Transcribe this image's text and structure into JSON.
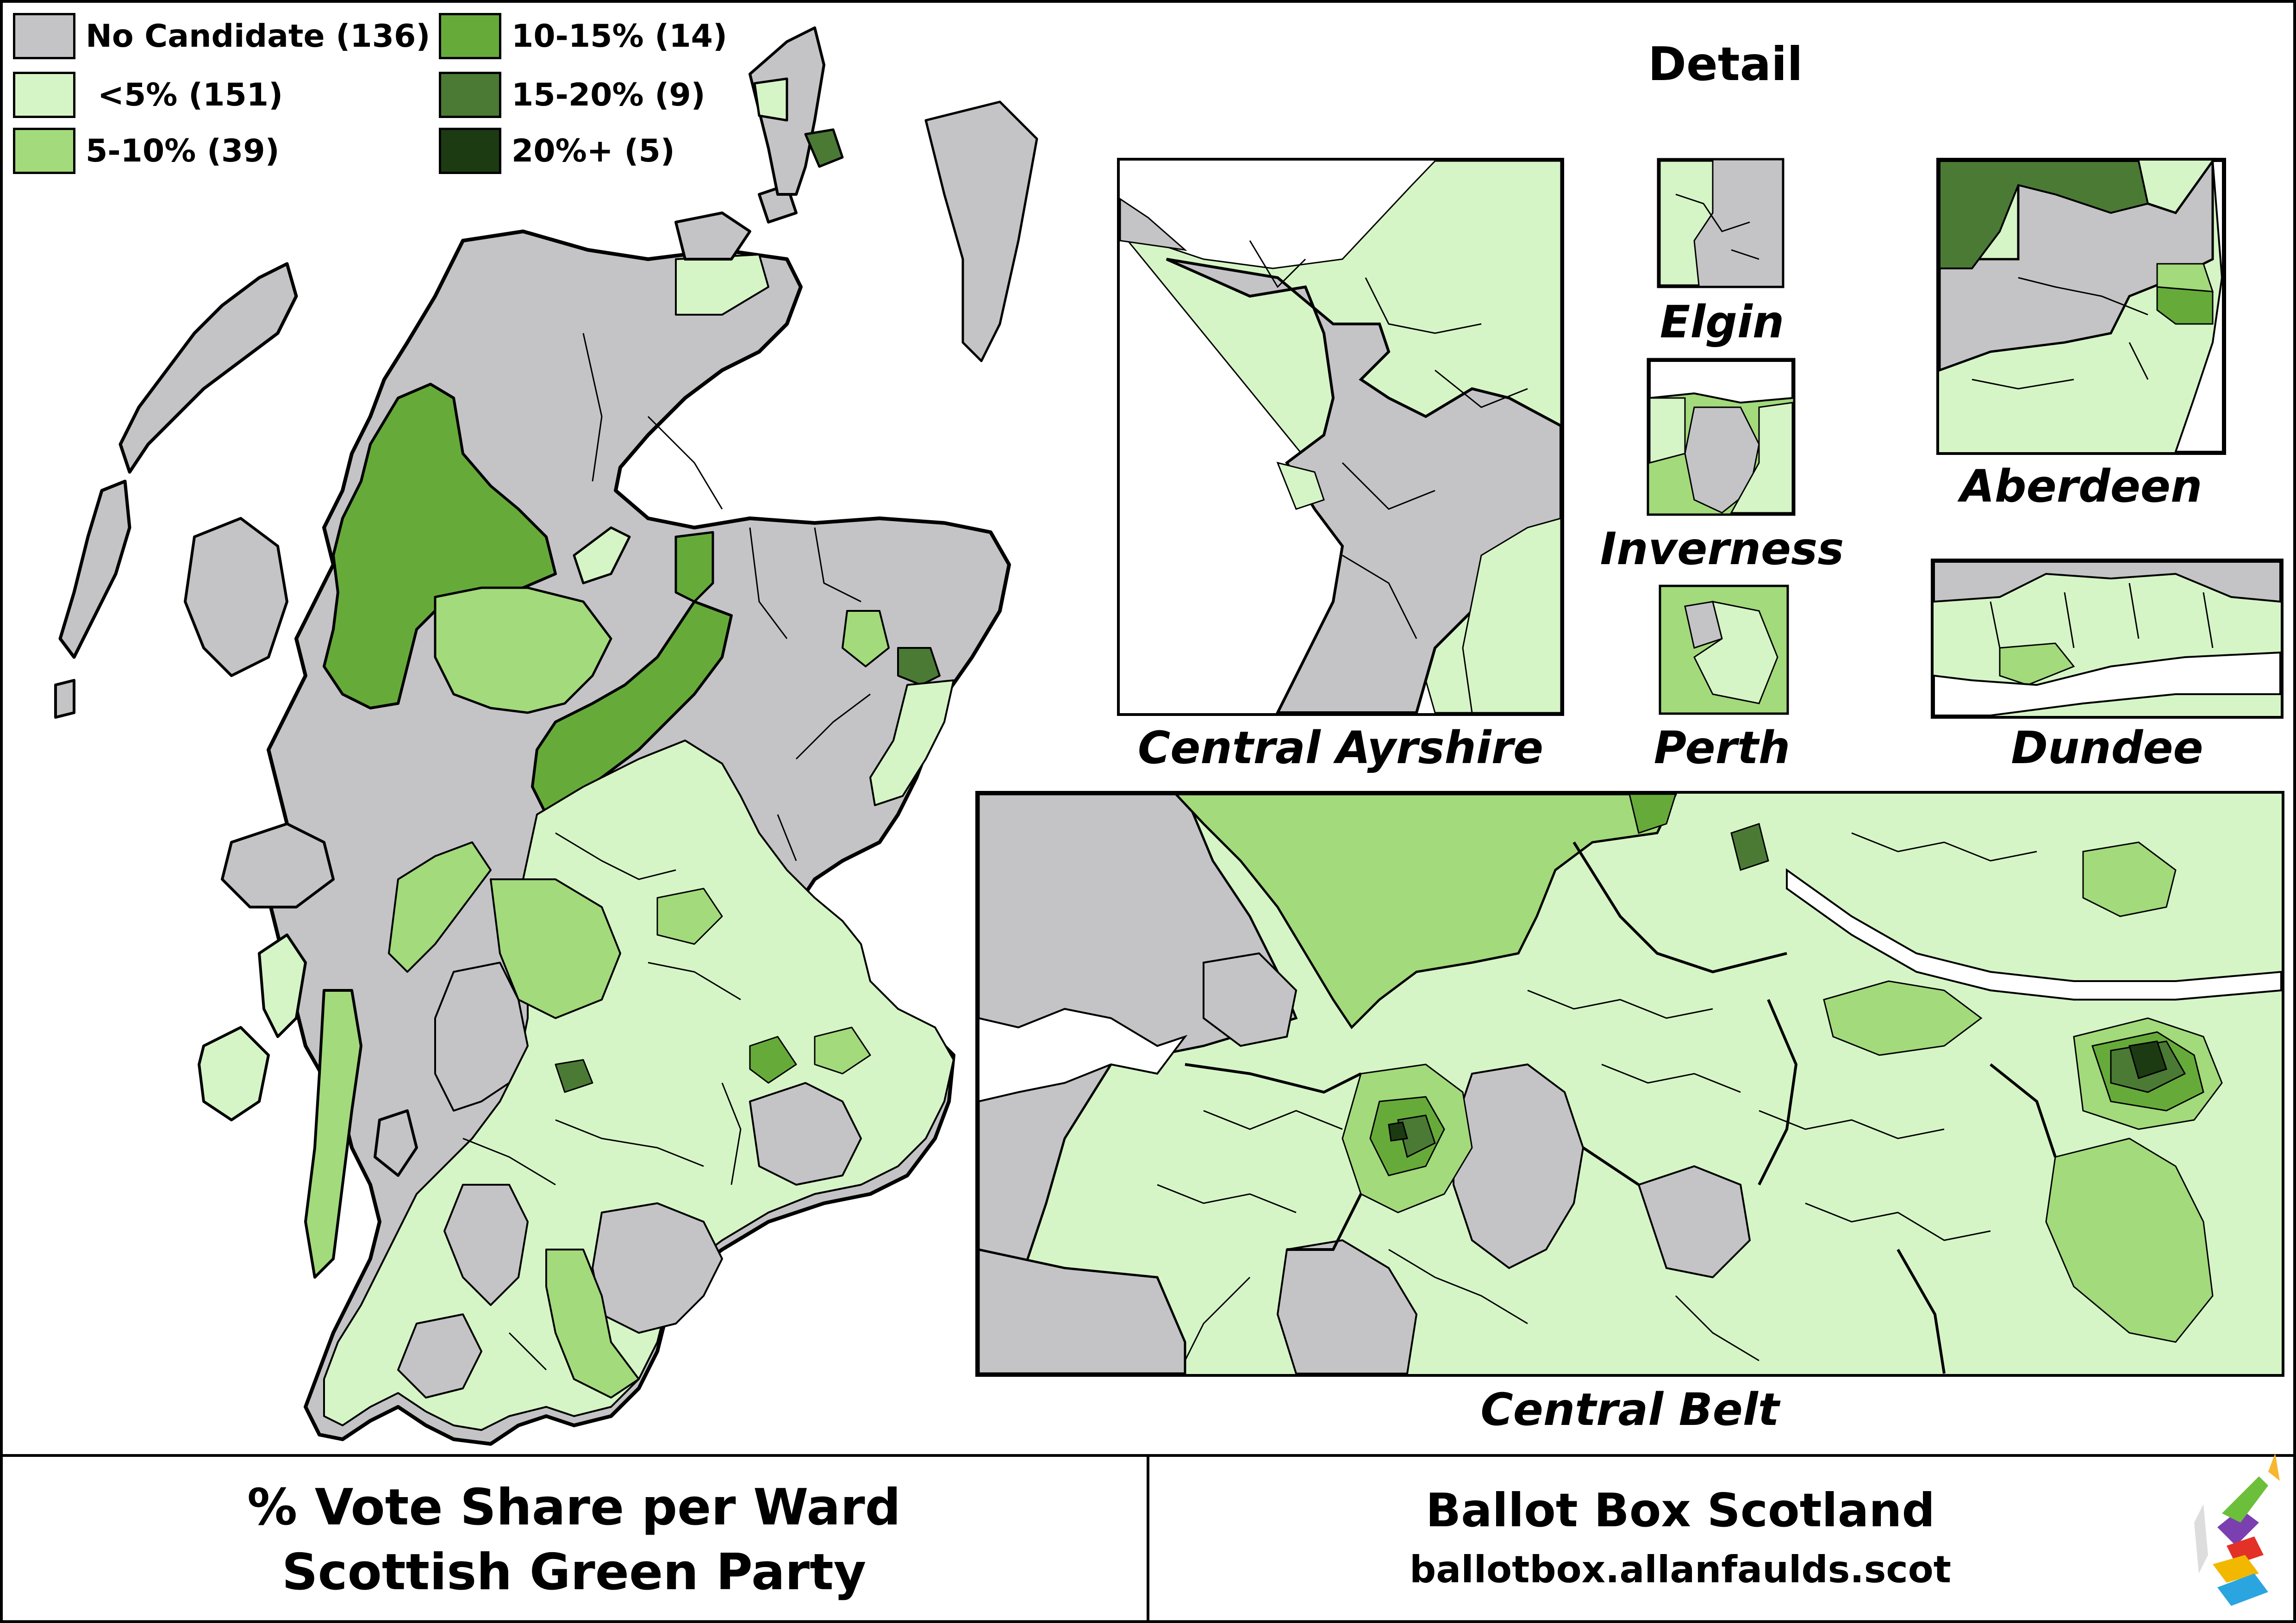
{
  "colors": {
    "no_candidate": "#c4c4c6",
    "lt5": "#d6f5c6",
    "p5_10": "#a3da7c",
    "p10_15": "#66ab3a",
    "p15_20": "#4b7a35",
    "p20_plus": "#1d3b12",
    "border": "#000000"
  },
  "legend": [
    {
      "key": "no_candidate",
      "label": "No Candidate (136)",
      "color": "#c4c4c6"
    },
    {
      "key": "lt5",
      "label": "<5% (151)",
      "color": "#d6f5c6"
    },
    {
      "key": "p5_10",
      "label": "5-10% (39)",
      "color": "#a3da7c"
    },
    {
      "key": "p10_15",
      "label": "10-15% (14)",
      "color": "#66ab3a"
    },
    {
      "key": "p15_20",
      "label": "15-20% (9)",
      "color": "#4b7a35"
    },
    {
      "key": "p20_plus",
      "label": "20%+ (5)",
      "color": "#1d3b12"
    }
  ],
  "detail_heading": "Detail",
  "insets": {
    "central_ayrshire": "Central Ayrshire",
    "elgin": "Elgin",
    "inverness": "Inverness",
    "perth": "Perth",
    "aberdeen": "Aberdeen",
    "dundee": "Dundee",
    "central_belt": "Central Belt"
  },
  "footer": {
    "title_line1": "% Vote Share per Ward",
    "title_line2": "Scottish Green Party",
    "brand_name": "Ballot Box Scotland",
    "brand_url": "ballotbox.allanfaulds.scot",
    "logo_icon": "ballot-box-scotland-logo-icon"
  }
}
